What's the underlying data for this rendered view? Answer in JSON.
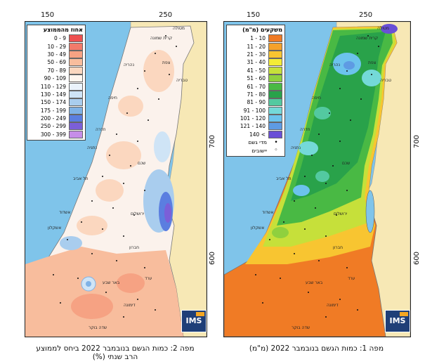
{
  "axes": {
    "x_tick_150": "150",
    "x_tick_250": "250",
    "y_tick_700": "700",
    "y_tick_600": "600"
  },
  "map2": {
    "caption_line1": "מפה 2: כמות הגשם בנובמבר 2022 ביחס לממוצע",
    "caption_line2": "הרב שנתי (%)",
    "legend_title": "אחוז מהממוצע",
    "legend": [
      {
        "label": "0 - 9",
        "color": "#ee5050"
      },
      {
        "label": "10 - 29",
        "color": "#f27a6a"
      },
      {
        "label": "30 - 49",
        "color": "#f6a283"
      },
      {
        "label": "50 - 69",
        "color": "#f8bd9d"
      },
      {
        "label": "70 - 89",
        "color": "#fbd7bf"
      },
      {
        "label": "90 - 109",
        "color": "#fff6ef"
      },
      {
        "label": "110 - 129",
        "color": "#eaf3fb"
      },
      {
        "label": "130 - 149",
        "color": "#cfe4f6"
      },
      {
        "label": "150 - 174",
        "color": "#a9cdee"
      },
      {
        "label": "175 - 199",
        "color": "#7fb2e6"
      },
      {
        "label": "200 - 249",
        "color": "#5b7ee0"
      },
      {
        "label": "250 - 299",
        "color": "#7b5fd8"
      },
      {
        "label": "300 - 399",
        "color": "#c68de8"
      }
    ]
  },
  "map1": {
    "caption": "מפה 1: כמות הגשם בנובמבר 2022 (מ\"מ)",
    "legend_title": "משקעים (מ\"מ)",
    "legend": [
      {
        "label": "1 - 10",
        "color": "#f07b25"
      },
      {
        "label": "11 - 20",
        "color": "#f5a12b"
      },
      {
        "label": "21 - 30",
        "color": "#f8c531"
      },
      {
        "label": "31 - 40",
        "color": "#f4ec36"
      },
      {
        "label": "41 - 50",
        "color": "#c6e03a"
      },
      {
        "label": "51 - 60",
        "color": "#8fd03e"
      },
      {
        "label": "61 - 70",
        "color": "#49b944"
      },
      {
        "label": "71 - 80",
        "color": "#29a24a"
      },
      {
        "label": "81 - 90",
        "color": "#53c9a0"
      },
      {
        "label": "91 - 100",
        "color": "#74d9d8"
      },
      {
        "label": "101 - 120",
        "color": "#6cc3ec"
      },
      {
        "label": "121 - 140",
        "color": "#5e9be3"
      },
      {
        "label": "140 <",
        "color": "#6a4fd6"
      }
    ],
    "symbols": [
      {
        "glyph": "•",
        "label": "מדי גשם"
      },
      {
        "glyph": "◦",
        "label": "יישובים"
      }
    ]
  },
  "logo_text": "IMS",
  "places": {
    "metula": "מטולה",
    "kiryat_shmona": "קרית שמונה",
    "safed": "צפת",
    "nahariya": "נהריה",
    "haifa": "חיפה",
    "tiberias": "טבריה",
    "hadera": "חדרה",
    "netanya": "נתניה",
    "shechem": "שכם",
    "tel_aviv": "תל אביב",
    "jerusalem": "ירושלים",
    "ashdod": "אשדוד",
    "ashkelon": "אשקלון",
    "hebron": "חברון",
    "beer_sheva": "באר שבע",
    "dimona": "דימונה",
    "arad": "ערד",
    "sde_boker": "שדה בוקר"
  }
}
